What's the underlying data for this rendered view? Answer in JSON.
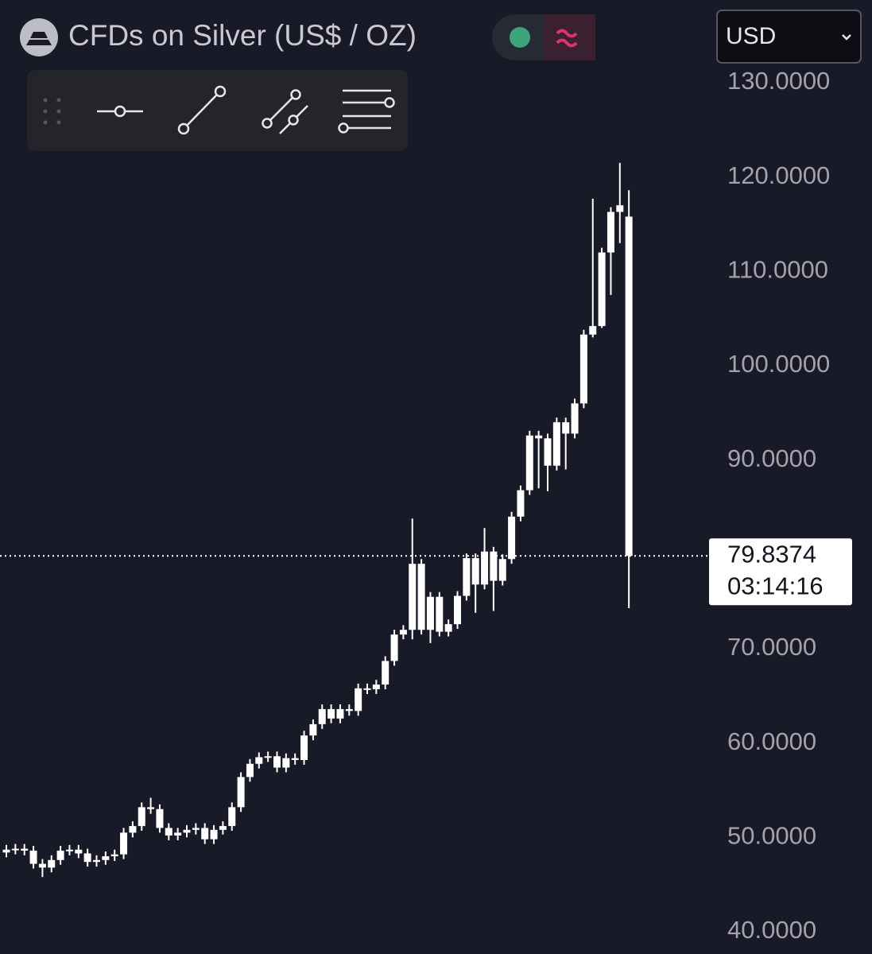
{
  "chart_data": {
    "type": "candlestick",
    "title": "CFDs on Silver (US$ / OZ)",
    "currency": "USD",
    "countdown": "03:14:16",
    "color": "#ffffff",
    "grid": false,
    "ylim": [
      37.64,
      138.76
    ],
    "yticks": [
      {
        "value": 130,
        "label": "130.0000"
      },
      {
        "value": 120,
        "label": "120.0000"
      },
      {
        "value": 110,
        "label": "110.0000"
      },
      {
        "value": 100,
        "label": "100.0000"
      },
      {
        "value": 90,
        "label": "90.0000"
      },
      {
        "value": 70,
        "label": "70.0000"
      },
      {
        "value": 60,
        "label": "60.0000"
      },
      {
        "value": 50,
        "label": "50.0000"
      },
      {
        "value": 40,
        "label": "40.0000"
      }
    ],
    "open": [
      48.4,
      48.7,
      48.8,
      48.6,
      47.2,
      46.8,
      47.6,
      48.6,
      48.7,
      48.3,
      47.4,
      47.6,
      48.0,
      48.2,
      50.5,
      51.2,
      53.2,
      53.0,
      51.0,
      50.2,
      50.5,
      50.8,
      51.0,
      49.8,
      50.8,
      51.2,
      53.2,
      56.4,
      57.8,
      58.5,
      58.6,
      57.4,
      58.4,
      58.2,
      60.8,
      62.0,
      63.6,
      62.6,
      63.6,
      63.4,
      65.8,
      65.7,
      66.2,
      68.7,
      71.5,
      72.0,
      79.0,
      72.0,
      75.5,
      71.8,
      72.6,
      75.6,
      79.6,
      76.8,
      80.3,
      77.2,
      79.5,
      84.0,
      86.8,
      92.6,
      92.3,
      89.4,
      94.0,
      92.8,
      96.0,
      103.3,
      104.2,
      112.0,
      116.3,
      115.8
    ],
    "high": [
      49.2,
      49.3,
      49.3,
      49.1,
      47.7,
      48.1,
      49.1,
      49.2,
      49.2,
      48.8,
      48.1,
      48.5,
      48.7,
      51.0,
      51.7,
      53.7,
      54.2,
      53.5,
      51.5,
      51.0,
      51.3,
      51.5,
      51.5,
      51.3,
      51.7,
      53.7,
      56.9,
      58.3,
      59.0,
      59.1,
      59.1,
      58.9,
      58.9,
      61.3,
      62.5,
      64.1,
      64.1,
      64.1,
      64.1,
      66.3,
      66.3,
      66.7,
      69.2,
      72.0,
      72.5,
      83.8,
      79.5,
      76.0,
      76.0,
      73.1,
      76.1,
      80.1,
      80.1,
      82.8,
      80.8,
      80.0,
      84.5,
      87.3,
      93.1,
      93.1,
      92.8,
      94.5,
      94.5,
      96.5,
      103.8,
      117.7,
      112.5,
      116.8,
      121.5,
      118.6
    ],
    "low": [
      47.9,
      48.2,
      48.1,
      46.7,
      45.8,
      46.3,
      47.1,
      48.1,
      47.8,
      46.9,
      46.9,
      47.1,
      47.5,
      47.7,
      50.0,
      50.7,
      52.5,
      50.5,
      49.7,
      49.7,
      50.0,
      50.3,
      49.3,
      49.3,
      50.3,
      50.7,
      52.7,
      55.9,
      57.3,
      58.0,
      56.9,
      56.9,
      57.7,
      57.7,
      60.3,
      61.5,
      62.1,
      62.1,
      62.9,
      62.9,
      65.2,
      65.2,
      65.7,
      68.2,
      71.0,
      71.0,
      71.5,
      70.6,
      71.3,
      71.3,
      72.1,
      75.1,
      73.8,
      76.3,
      74.0,
      76.7,
      79.0,
      83.5,
      86.3,
      87.0,
      86.7,
      88.9,
      89.0,
      92.3,
      95.5,
      103.0,
      104.0,
      107.5,
      113.0,
      74.3
    ],
    "close": [
      48.7,
      48.8,
      48.6,
      47.2,
      46.8,
      47.6,
      48.6,
      48.7,
      48.3,
      47.4,
      47.6,
      48.0,
      48.2,
      50.5,
      51.2,
      53.2,
      53.0,
      51.0,
      50.2,
      50.5,
      50.8,
      51.0,
      49.8,
      50.8,
      51.2,
      53.2,
      56.4,
      57.8,
      58.5,
      58.6,
      57.4,
      58.4,
      58.2,
      60.8,
      62.0,
      63.6,
      62.6,
      63.6,
      63.4,
      65.8,
      65.7,
      66.2,
      68.7,
      71.5,
      72.0,
      79.0,
      72.0,
      75.5,
      71.8,
      72.6,
      75.6,
      79.6,
      76.8,
      80.3,
      77.2,
      79.5,
      84.0,
      86.8,
      92.6,
      92.3,
      89.4,
      94.0,
      92.8,
      96.0,
      103.3,
      104.2,
      112.0,
      116.3,
      117.0,
      79.8374
    ]
  }
}
